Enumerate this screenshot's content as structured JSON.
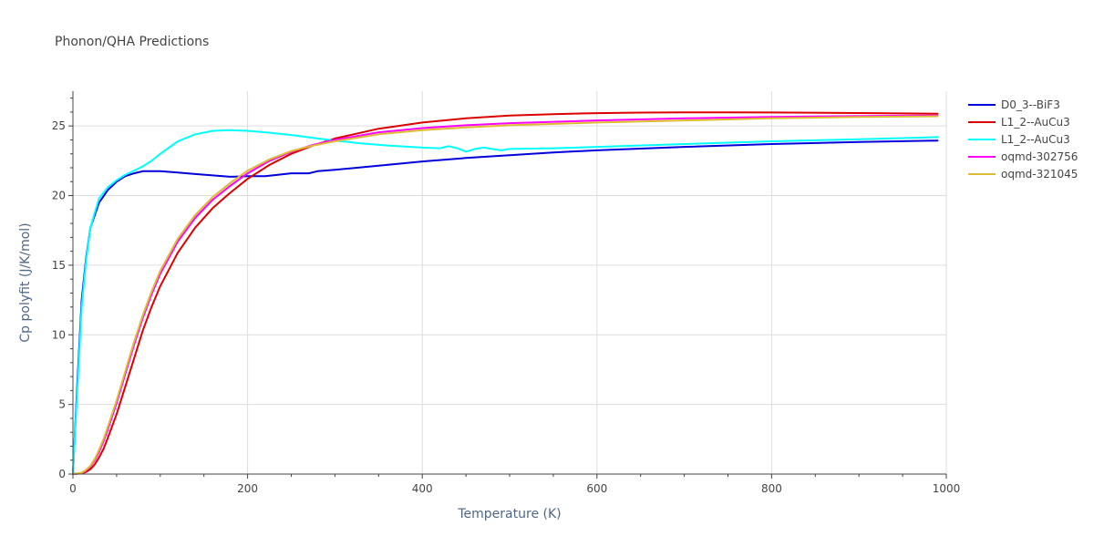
{
  "chart_data": {
    "type": "line",
    "title": "Phonon/QHA Predictions",
    "xlabel": "Temperature (K)",
    "ylabel": "Cp polyfit (J/K/mol)",
    "xlim": [
      0,
      1000
    ],
    "ylim": [
      0,
      27.5
    ],
    "x_ticks": [
      0,
      200,
      400,
      600,
      800,
      1000
    ],
    "y_ticks": [
      0,
      5,
      10,
      15,
      20,
      25
    ],
    "grid": true,
    "legend_position": "top-right",
    "series": [
      {
        "name": "D0_3--BiF3",
        "color": "#0000dd",
        "x": [
          0,
          5,
          10,
          15,
          20,
          30,
          40,
          50,
          60,
          70,
          80,
          90,
          100,
          120,
          140,
          160,
          180,
          200,
          220,
          250,
          270,
          280,
          300,
          350,
          400,
          450,
          500,
          550,
          600,
          700,
          800,
          900,
          990
        ],
        "y": [
          0,
          6.5,
          12.5,
          15.5,
          17.7,
          19.5,
          20.4,
          21.0,
          21.4,
          21.6,
          21.75,
          21.75,
          21.75,
          21.65,
          21.55,
          21.45,
          21.35,
          21.4,
          21.4,
          21.6,
          21.6,
          21.75,
          21.85,
          22.15,
          22.45,
          22.7,
          22.9,
          23.1,
          23.25,
          23.5,
          23.7,
          23.85,
          23.95
        ]
      },
      {
        "name": "L1_2--AuCu3",
        "color": "#dd0000",
        "x": [
          0,
          10,
          15,
          20,
          25,
          30,
          35,
          40,
          50,
          60,
          70,
          80,
          90,
          100,
          120,
          140,
          160,
          180,
          200,
          225,
          250,
          275,
          300,
          350,
          400,
          450,
          500,
          550,
          600,
          650,
          700,
          750,
          800,
          900,
          990
        ],
        "y": [
          0,
          0.05,
          0.15,
          0.35,
          0.7,
          1.2,
          1.8,
          2.6,
          4.3,
          6.3,
          8.3,
          10.3,
          12.0,
          13.5,
          15.9,
          17.7,
          19.1,
          20.2,
          21.2,
          22.2,
          23.0,
          23.6,
          24.1,
          24.8,
          25.25,
          25.55,
          25.75,
          25.85,
          25.92,
          25.96,
          25.98,
          25.98,
          25.97,
          25.93,
          25.88
        ]
      },
      {
        "name": "L1_2--AuCu3",
        "color": "#00ffff",
        "x": [
          0,
          5,
          10,
          15,
          20,
          25,
          30,
          40,
          50,
          60,
          70,
          80,
          90,
          100,
          120,
          140,
          160,
          180,
          200,
          220,
          250,
          280,
          300,
          330,
          360,
          400,
          420,
          430,
          440,
          450,
          460,
          470,
          480,
          490,
          500,
          550,
          600,
          700,
          800,
          900,
          990
        ],
        "y": [
          0,
          6.0,
          12.0,
          15.3,
          17.7,
          18.8,
          19.8,
          20.6,
          21.1,
          21.5,
          21.8,
          22.1,
          22.5,
          23.0,
          23.9,
          24.4,
          24.65,
          24.7,
          24.65,
          24.55,
          24.35,
          24.1,
          23.95,
          23.75,
          23.6,
          23.45,
          23.4,
          23.55,
          23.4,
          23.15,
          23.35,
          23.45,
          23.35,
          23.25,
          23.35,
          23.4,
          23.5,
          23.7,
          23.9,
          24.05,
          24.2
        ]
      },
      {
        "name": "oqmd-302756",
        "color": "#ff00ff",
        "x": [
          0,
          10,
          15,
          20,
          25,
          30,
          35,
          40,
          50,
          60,
          70,
          80,
          90,
          100,
          120,
          140,
          160,
          180,
          200,
          225,
          250,
          275,
          300,
          350,
          400,
          450,
          500,
          600,
          700,
          800,
          900,
          990
        ],
        "y": [
          0,
          0.08,
          0.25,
          0.55,
          1.0,
          1.6,
          2.35,
          3.2,
          5.1,
          7.2,
          9.3,
          11.2,
          12.9,
          14.4,
          16.7,
          18.4,
          19.7,
          20.7,
          21.6,
          22.5,
          23.15,
          23.65,
          24.0,
          24.55,
          24.85,
          25.05,
          25.2,
          25.4,
          25.55,
          25.65,
          25.72,
          25.75
        ]
      },
      {
        "name": "oqmd-321045",
        "color": "#ddbb33",
        "x": [
          0,
          10,
          15,
          20,
          25,
          30,
          35,
          40,
          50,
          60,
          70,
          80,
          90,
          100,
          120,
          140,
          160,
          180,
          200,
          225,
          250,
          275,
          300,
          350,
          400,
          450,
          500,
          600,
          700,
          800,
          900,
          990
        ],
        "y": [
          0,
          0.1,
          0.3,
          0.6,
          1.1,
          1.75,
          2.5,
          3.4,
          5.3,
          7.4,
          9.5,
          11.4,
          13.1,
          14.6,
          16.9,
          18.6,
          19.9,
          20.9,
          21.8,
          22.6,
          23.2,
          23.6,
          23.9,
          24.4,
          24.7,
          24.9,
          25.05,
          25.25,
          25.4,
          25.55,
          25.65,
          25.7
        ]
      }
    ]
  }
}
